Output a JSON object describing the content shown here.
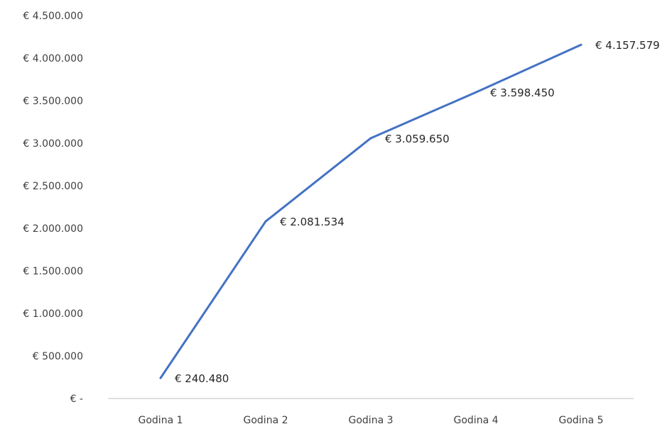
{
  "chart_data": {
    "type": "line",
    "categories": [
      "Godina 1",
      "Godina 2",
      "Godina 3",
      "Godina 4",
      "Godina 5"
    ],
    "series": [
      {
        "values": [
          240480,
          2081534,
          3059650,
          3598450,
          4157579
        ],
        "color": "#4472C4",
        "data_labels": [
          "€ 240.480",
          "€ 2.081.534",
          "€ 3.059.650",
          "€ 3.598.450",
          "€ 4.157.579"
        ]
      }
    ],
    "y_ticks": [
      0,
      500000,
      1000000,
      1500000,
      2000000,
      2500000,
      3000000,
      3500000,
      4000000,
      4500000
    ],
    "y_tick_labels": [
      "€ -",
      "€ 500.000",
      "€ 1.000.000",
      "€ 1.500.000",
      "€ 2.000.000",
      "€ 2.500.000",
      "€ 3.000.000",
      "€ 3.500.000",
      "€ 4.000.000",
      "€ 4.500.000"
    ],
    "ylim": [
      0,
      4500000
    ],
    "title": "",
    "xlabel": "",
    "ylabel": "",
    "grid": false,
    "legend": "none"
  }
}
